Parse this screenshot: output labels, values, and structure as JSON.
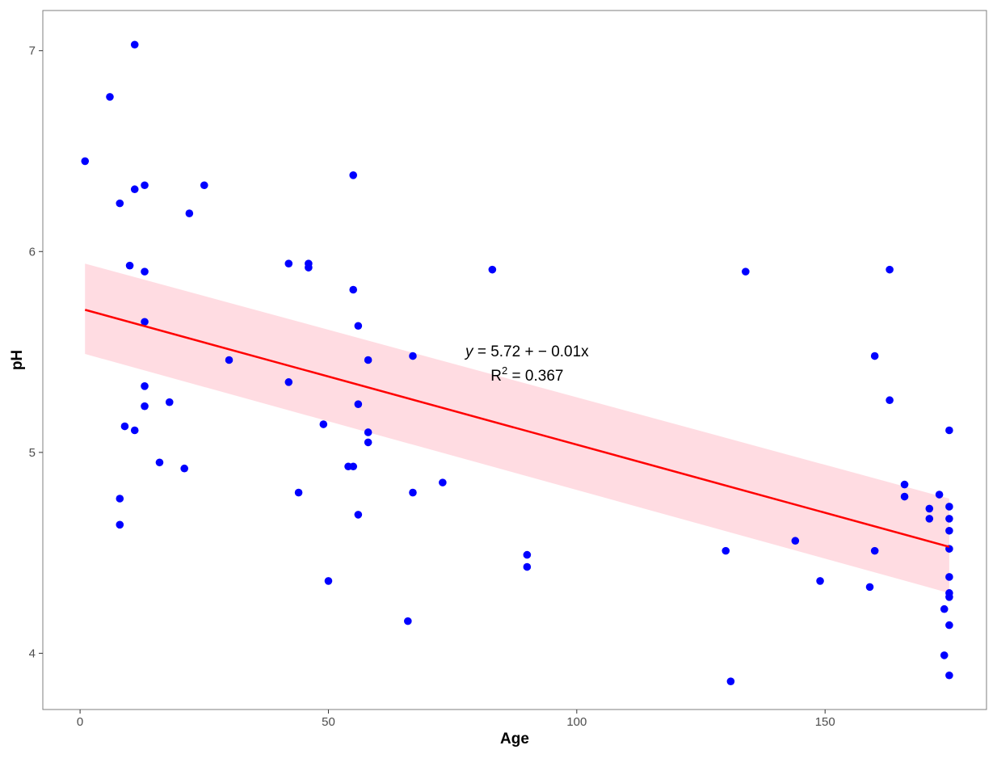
{
  "chart_data": {
    "type": "scatter",
    "xlabel": "Age",
    "ylabel": "pH",
    "xlim": [
      -7.5,
      182.5
    ],
    "ylim": [
      3.72,
      7.2
    ],
    "xticks": [
      0,
      50,
      100,
      150
    ],
    "yticks": [
      4,
      5,
      6,
      7
    ],
    "grid": false,
    "colors": {
      "points": "#0000ff",
      "fit_line": "#ff0000",
      "confidence_band": "#ffc0cb",
      "panel_border": "#7f7f7f"
    },
    "points": [
      {
        "x": 1,
        "y": 6.45
      },
      {
        "x": 6,
        "y": 6.77
      },
      {
        "x": 8,
        "y": 6.24
      },
      {
        "x": 8,
        "y": 4.77
      },
      {
        "x": 8,
        "y": 4.64
      },
      {
        "x": 9,
        "y": 5.13
      },
      {
        "x": 10,
        "y": 5.93
      },
      {
        "x": 11,
        "y": 7.03
      },
      {
        "x": 11,
        "y": 6.31
      },
      {
        "x": 11,
        "y": 5.11
      },
      {
        "x": 13,
        "y": 6.33
      },
      {
        "x": 13,
        "y": 5.9
      },
      {
        "x": 13,
        "y": 5.65
      },
      {
        "x": 13,
        "y": 5.33
      },
      {
        "x": 13,
        "y": 5.23
      },
      {
        "x": 16,
        "y": 4.95
      },
      {
        "x": 18,
        "y": 5.25
      },
      {
        "x": 21,
        "y": 4.92
      },
      {
        "x": 22,
        "y": 6.19
      },
      {
        "x": 25,
        "y": 6.33
      },
      {
        "x": 30,
        "y": 5.46
      },
      {
        "x": 42,
        "y": 5.94
      },
      {
        "x": 42,
        "y": 5.35
      },
      {
        "x": 44,
        "y": 4.8
      },
      {
        "x": 46,
        "y": 5.94
      },
      {
        "x": 46,
        "y": 5.92
      },
      {
        "x": 49,
        "y": 5.14
      },
      {
        "x": 50,
        "y": 4.36
      },
      {
        "x": 54,
        "y": 4.93
      },
      {
        "x": 55,
        "y": 6.38
      },
      {
        "x": 55,
        "y": 5.81
      },
      {
        "x": 55,
        "y": 4.93
      },
      {
        "x": 56,
        "y": 5.63
      },
      {
        "x": 56,
        "y": 5.24
      },
      {
        "x": 56,
        "y": 4.69
      },
      {
        "x": 58,
        "y": 5.46
      },
      {
        "x": 58,
        "y": 5.1
      },
      {
        "x": 58,
        "y": 5.05
      },
      {
        "x": 66,
        "y": 4.16
      },
      {
        "x": 67,
        "y": 5.48
      },
      {
        "x": 67,
        "y": 4.8
      },
      {
        "x": 73,
        "y": 4.85
      },
      {
        "x": 83,
        "y": 5.91
      },
      {
        "x": 90,
        "y": 4.49
      },
      {
        "x": 90,
        "y": 4.43
      },
      {
        "x": 130,
        "y": 4.51
      },
      {
        "x": 131,
        "y": 3.86
      },
      {
        "x": 134,
        "y": 5.9
      },
      {
        "x": 144,
        "y": 4.56
      },
      {
        "x": 149,
        "y": 4.36
      },
      {
        "x": 159,
        "y": 4.33
      },
      {
        "x": 160,
        "y": 5.48
      },
      {
        "x": 160,
        "y": 4.51
      },
      {
        "x": 163,
        "y": 5.91
      },
      {
        "x": 163,
        "y": 5.26
      },
      {
        "x": 166,
        "y": 4.84
      },
      {
        "x": 166,
        "y": 4.78
      },
      {
        "x": 171,
        "y": 4.72
      },
      {
        "x": 171,
        "y": 4.67
      },
      {
        "x": 173,
        "y": 4.79
      },
      {
        "x": 174,
        "y": 4.22
      },
      {
        "x": 174,
        "y": 3.99
      },
      {
        "x": 175,
        "y": 5.11
      },
      {
        "x": 175,
        "y": 4.73
      },
      {
        "x": 175,
        "y": 4.67
      },
      {
        "x": 175,
        "y": 4.61
      },
      {
        "x": 175,
        "y": 4.52
      },
      {
        "x": 175,
        "y": 4.38
      },
      {
        "x": 175,
        "y": 4.3
      },
      {
        "x": 175,
        "y": 4.28
      },
      {
        "x": 175,
        "y": 4.14
      },
      {
        "x": 175,
        "y": 3.89
      }
    ],
    "fit_line": {
      "x": [
        1,
        175
      ],
      "y": [
        5.71,
        4.53
      ]
    },
    "confidence_band": {
      "x": [
        1,
        175
      ],
      "upper": [
        5.94,
        4.77
      ],
      "lower": [
        5.49,
        4.3
      ]
    },
    "annotation": {
      "line1_var": "y",
      "line1_eq": " = 5.72 + − 0.01x",
      "line2_r": "R",
      "line2_sup": "2",
      "line2_val": " = 0.367",
      "at": {
        "x": 90,
        "y": 5.45
      }
    }
  }
}
